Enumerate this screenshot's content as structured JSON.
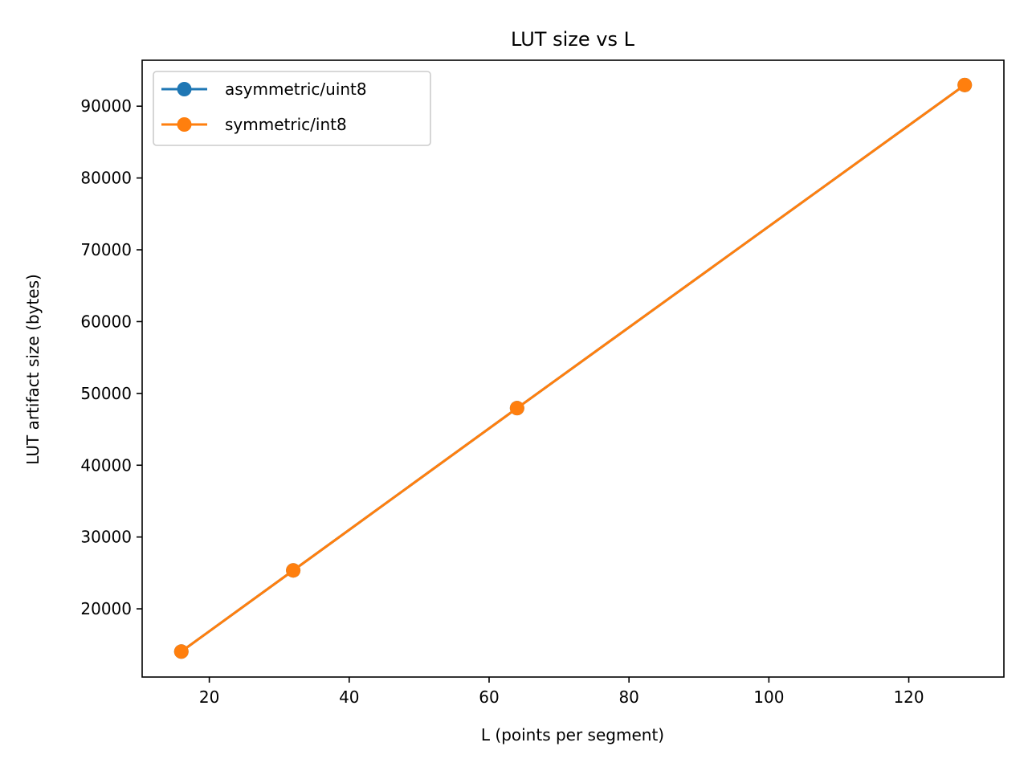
{
  "chart_data": {
    "type": "line",
    "title": "LUT size vs L",
    "xlabel": "L (points per segment)",
    "ylabel": "LUT artifact size (bytes)",
    "x": [
      16,
      32,
      64,
      128
    ],
    "xticks": [
      20,
      40,
      60,
      80,
      100,
      120
    ],
    "yticks": [
      20000,
      30000,
      40000,
      50000,
      60000,
      70000,
      80000,
      90000
    ],
    "xlim": [
      10.4,
      133.6
    ],
    "ylim": [
      10500,
      96400
    ],
    "grid": false,
    "legend_position": "top-left",
    "series": [
      {
        "name": "asymmetric/uint8",
        "color": "#1f77b4",
        "values": [
          14050,
          25350,
          47950,
          92950
        ]
      },
      {
        "name": "symmetric/int8",
        "color": "#ff7f0e",
        "values": [
          14050,
          25350,
          47950,
          92950
        ]
      }
    ]
  }
}
